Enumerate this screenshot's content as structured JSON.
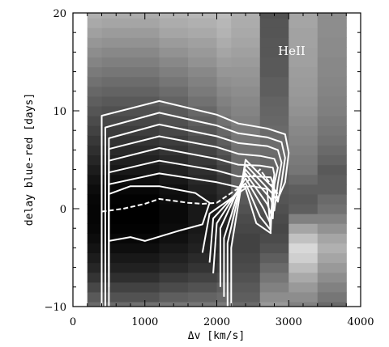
{
  "chart_data": {
    "type": "heatmap",
    "title": "",
    "xlabel": "Δv [km/s]",
    "ylabel": "delay blue-red [days]",
    "xlim": [
      0,
      4000
    ],
    "ylim": [
      -10,
      20
    ],
    "x_ticks": [
      "0",
      "1000",
      "2000",
      "3000",
      "4000"
    ],
    "y_ticks": [
      "−10",
      "0",
      "10",
      "20"
    ],
    "annotation": "HeII",
    "grid": false,
    "colormap": "grayscale (dark = high, light = low)",
    "heatmap_columns_kms": [
      [
        200,
        400
      ],
      [
        400,
        800
      ],
      [
        800,
        1200
      ],
      [
        1200,
        1600
      ],
      [
        1600,
        2000
      ],
      [
        2000,
        2200
      ],
      [
        2200,
        2600
      ],
      [
        2600,
        3000
      ],
      [
        3000,
        3400
      ],
      [
        3400,
        3800
      ]
    ],
    "heatmap_rows_days": [
      -10,
      -9,
      -8,
      -7,
      -6,
      -5,
      -4,
      -3,
      -2,
      -1,
      0,
      1,
      2,
      3,
      4,
      5,
      6,
      7,
      8,
      9,
      10,
      11,
      12,
      13,
      14,
      15,
      16,
      17,
      18,
      19,
      20
    ],
    "heatmap_levels": [
      [
        0.55,
        0.55,
        0.52,
        0.5,
        0.5,
        0.48,
        0.55,
        0.35,
        0.45,
        0.55
      ],
      [
        0.62,
        0.65,
        0.65,
        0.6,
        0.58,
        0.55,
        0.6,
        0.4,
        0.4,
        0.5
      ],
      [
        0.7,
        0.72,
        0.72,
        0.68,
        0.65,
        0.6,
        0.62,
        0.45,
        0.35,
        0.45
      ],
      [
        0.78,
        0.8,
        0.8,
        0.75,
        0.72,
        0.68,
        0.65,
        0.5,
        0.28,
        0.4
      ],
      [
        0.84,
        0.86,
        0.86,
        0.82,
        0.78,
        0.74,
        0.68,
        0.55,
        0.2,
        0.35
      ],
      [
        0.88,
        0.9,
        0.9,
        0.86,
        0.82,
        0.78,
        0.7,
        0.6,
        0.12,
        0.3
      ],
      [
        0.92,
        0.94,
        0.94,
        0.9,
        0.86,
        0.82,
        0.72,
        0.65,
        0.08,
        0.25
      ],
      [
        0.95,
        0.97,
        0.97,
        0.93,
        0.88,
        0.85,
        0.72,
        0.68,
        0.18,
        0.3
      ],
      [
        0.97,
        0.99,
        0.99,
        0.95,
        0.9,
        0.86,
        0.7,
        0.7,
        0.3,
        0.38
      ],
      [
        0.98,
        1.0,
        1.0,
        0.96,
        0.9,
        0.86,
        0.68,
        0.68,
        0.45,
        0.45
      ],
      [
        0.98,
        1.0,
        1.0,
        0.96,
        0.9,
        0.85,
        0.65,
        0.66,
        0.6,
        0.52
      ],
      [
        0.97,
        0.99,
        0.99,
        0.95,
        0.88,
        0.82,
        0.62,
        0.64,
        0.62,
        0.55
      ],
      [
        0.95,
        0.97,
        0.97,
        0.93,
        0.86,
        0.8,
        0.6,
        0.62,
        0.6,
        0.6
      ],
      [
        0.92,
        0.94,
        0.94,
        0.9,
        0.83,
        0.76,
        0.58,
        0.6,
        0.55,
        0.6
      ],
      [
        0.88,
        0.9,
        0.9,
        0.86,
        0.8,
        0.72,
        0.56,
        0.58,
        0.5,
        0.62
      ],
      [
        0.84,
        0.86,
        0.86,
        0.82,
        0.76,
        0.68,
        0.54,
        0.56,
        0.48,
        0.58
      ],
      [
        0.8,
        0.82,
        0.82,
        0.78,
        0.72,
        0.64,
        0.52,
        0.54,
        0.46,
        0.55
      ],
      [
        0.76,
        0.78,
        0.78,
        0.74,
        0.68,
        0.6,
        0.5,
        0.54,
        0.44,
        0.52
      ],
      [
        0.72,
        0.74,
        0.74,
        0.7,
        0.64,
        0.56,
        0.48,
        0.55,
        0.42,
        0.5
      ],
      [
        0.68,
        0.7,
        0.7,
        0.66,
        0.6,
        0.52,
        0.46,
        0.56,
        0.4,
        0.48
      ],
      [
        0.64,
        0.66,
        0.66,
        0.62,
        0.56,
        0.48,
        0.44,
        0.57,
        0.38,
        0.46
      ],
      [
        0.6,
        0.62,
        0.62,
        0.58,
        0.52,
        0.45,
        0.42,
        0.58,
        0.36,
        0.45
      ],
      [
        0.56,
        0.58,
        0.58,
        0.54,
        0.48,
        0.42,
        0.4,
        0.6,
        0.35,
        0.44
      ],
      [
        0.52,
        0.54,
        0.54,
        0.5,
        0.45,
        0.39,
        0.38,
        0.6,
        0.34,
        0.43
      ],
      [
        0.48,
        0.5,
        0.5,
        0.46,
        0.42,
        0.36,
        0.36,
        0.62,
        0.33,
        0.42
      ],
      [
        0.44,
        0.46,
        0.46,
        0.42,
        0.38,
        0.33,
        0.34,
        0.62,
        0.32,
        0.42
      ],
      [
        0.4,
        0.42,
        0.42,
        0.38,
        0.35,
        0.3,
        0.32,
        0.63,
        0.32,
        0.41
      ],
      [
        0.36,
        0.38,
        0.38,
        0.34,
        0.32,
        0.27,
        0.3,
        0.63,
        0.31,
        0.41
      ],
      [
        0.32,
        0.34,
        0.34,
        0.3,
        0.28,
        0.24,
        0.28,
        0.64,
        0.31,
        0.4
      ],
      [
        0.28,
        0.3,
        0.3,
        0.27,
        0.25,
        0.22,
        0.27,
        0.64,
        0.3,
        0.4
      ],
      [
        0.25,
        0.27,
        0.27,
        0.24,
        0.22,
        0.2,
        0.26,
        0.65,
        0.3,
        0.4
      ]
    ],
    "contours": [
      [
        [
          400,
          -10
        ],
        [
          400,
          9.5
        ],
        [
          1200,
          11
        ],
        [
          2000,
          9.6
        ],
        [
          2300,
          8.7
        ],
        [
          2700,
          8.2
        ],
        [
          2950,
          7.6
        ],
        [
          3000,
          5.7
        ],
        [
          2950,
          2.7
        ],
        [
          2850,
          1
        ],
        [
          2800,
          2
        ],
        [
          2400,
          5
        ],
        [
          2200,
          -4
        ],
        [
          2200,
          -10
        ]
      ],
      [
        [
          450,
          -10
        ],
        [
          450,
          8.3
        ],
        [
          1200,
          9.8
        ],
        [
          2000,
          8.5
        ],
        [
          2300,
          7.7
        ],
        [
          2700,
          7.3
        ],
        [
          2900,
          6.8
        ],
        [
          2950,
          5.2
        ],
        [
          2900,
          2.7
        ],
        [
          2850,
          0.7
        ],
        [
          2780,
          1.5
        ],
        [
          2400,
          4.5
        ],
        [
          2150,
          -3.5
        ],
        [
          2150,
          -10
        ]
      ],
      [
        [
          500,
          -10
        ],
        [
          500,
          7.2
        ],
        [
          1200,
          8.6
        ],
        [
          2000,
          7.4
        ],
        [
          2300,
          6.7
        ],
        [
          2700,
          6.4
        ],
        [
          2850,
          6
        ],
        [
          2900,
          4.7
        ],
        [
          2850,
          2.6
        ],
        [
          2800,
          -0.2
        ],
        [
          2750,
          1
        ],
        [
          2400,
          4
        ],
        [
          2100,
          -3
        ],
        [
          2100,
          -9
        ]
      ],
      [
        [
          500,
          -8
        ],
        [
          500,
          6.1
        ],
        [
          1200,
          7.4
        ],
        [
          2000,
          6.3
        ],
        [
          2300,
          5.6
        ],
        [
          2600,
          5.4
        ],
        [
          2800,
          5.1
        ],
        [
          2850,
          4.2
        ],
        [
          2800,
          2.5
        ],
        [
          2780,
          -1
        ],
        [
          2700,
          0.5
        ],
        [
          2400,
          3.6
        ],
        [
          2050,
          -2
        ],
        [
          2050,
          -8
        ]
      ],
      [
        [
          500,
          -7
        ],
        [
          500,
          4.9
        ],
        [
          1200,
          6.2
        ],
        [
          2000,
          5.1
        ],
        [
          2300,
          4.5
        ],
        [
          2600,
          4.4
        ],
        [
          2780,
          4.2
        ],
        [
          2800,
          3.5
        ],
        [
          2780,
          2.3
        ],
        [
          2750,
          -1.6
        ],
        [
          2650,
          0
        ],
        [
          2400,
          3.1
        ],
        [
          2000,
          -1.5
        ],
        [
          1950,
          -6.6
        ]
      ],
      [
        [
          500,
          -5.9
        ],
        [
          500,
          3.7
        ],
        [
          1200,
          4.9
        ],
        [
          2000,
          3.9
        ],
        [
          2300,
          3.3
        ],
        [
          2550,
          3.3
        ],
        [
          2750,
          3.2
        ],
        [
          2780,
          2.6
        ],
        [
          2750,
          -2.2
        ],
        [
          2600,
          -0.8
        ],
        [
          2400,
          2.6
        ],
        [
          1950,
          -1
        ],
        [
          1900,
          -5.5
        ]
      ],
      [
        [
          500,
          -4.6
        ],
        [
          500,
          2.5
        ],
        [
          1200,
          3.6
        ],
        [
          2000,
          2.7
        ],
        [
          2300,
          2.2
        ],
        [
          2500,
          2.3
        ],
        [
          2700,
          2
        ],
        [
          2750,
          -2.5
        ],
        [
          2550,
          -1.5
        ],
        [
          2400,
          2.1
        ],
        [
          1900,
          -0.5
        ],
        [
          1800,
          -4.5
        ]
      ],
      [
        [
          500,
          -3.3
        ],
        [
          500,
          1.5
        ],
        [
          800,
          2.3
        ],
        [
          1200,
          2.3
        ],
        [
          1700,
          1.6
        ],
        [
          1900,
          0.6
        ],
        [
          1800,
          -1.6
        ],
        [
          1500,
          -2.2
        ],
        [
          1000,
          -3.3
        ],
        [
          800,
          -2.9
        ],
        [
          500,
          -3.3
        ]
      ]
    ],
    "ridge_line": [
      [
        400,
        -0.3
      ],
      [
        700,
        0
      ],
      [
        1000,
        0.5
      ],
      [
        1200,
        1
      ],
      [
        1400,
        0.8
      ],
      [
        1600,
        0.6
      ],
      [
        1800,
        0.5
      ],
      [
        2000,
        0.6
      ],
      [
        2200,
        1.6
      ],
      [
        2400,
        2.6
      ],
      [
        2600,
        4
      ],
      [
        2750,
        2.5
      ],
      [
        2850,
        1.5
      ]
    ],
    "colors": {
      "contour": "#ffffff",
      "frame": "#000000",
      "background": "#ffffff"
    }
  }
}
